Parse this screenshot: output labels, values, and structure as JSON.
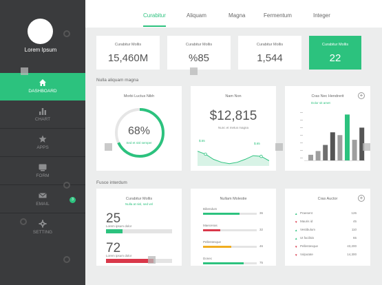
{
  "sidebar": {
    "user_name": "Lorem Ipsum",
    "items": [
      {
        "label": "DASHBOARD",
        "icon": "home-icon",
        "active": true
      },
      {
        "label": "CHART",
        "icon": "bar-chart-icon"
      },
      {
        "label": "APPS",
        "icon": "star-icon"
      },
      {
        "label": "FORM",
        "icon": "form-icon"
      },
      {
        "label": "EMAIL",
        "icon": "envelope-icon",
        "badge": "3"
      },
      {
        "label": "SETTING",
        "icon": "gear-icon"
      }
    ]
  },
  "tabs": [
    {
      "label": "Curabitur",
      "active": true
    },
    {
      "label": "Aliquam"
    },
    {
      "label": "Magna"
    },
    {
      "label": "Fermentum"
    },
    {
      "label": "Integer"
    }
  ],
  "stats": [
    {
      "label": "Curabitur Mollis",
      "value": "15,460M"
    },
    {
      "label": "Curabitur Mollis",
      "value": "%85"
    },
    {
      "label": "Curabitur Mollis",
      "value": "1,544"
    },
    {
      "label": "Curabitur Mollis",
      "value": "22",
      "highlight": true
    }
  ],
  "section1": {
    "title": "Nulla aliquam magna"
  },
  "donut_card": {
    "title": "Morbi Luctus Nibh",
    "percent": 68,
    "percent_label": "68%",
    "caption": "Sed et nisl semper"
  },
  "line_card": {
    "title": "Nam Non",
    "value": "$12,815",
    "caption": "Nunc et metus magna",
    "markers": [
      "$.55",
      "$.65"
    ],
    "chart_data": {
      "type": "area",
      "values": [
        20,
        16,
        9,
        5,
        3,
        5,
        9,
        14,
        13,
        7
      ],
      "ylim": [
        0,
        30
      ]
    }
  },
  "bar_card": {
    "title": "Cras Nec Hendrerit",
    "legend": "Dolor sit amet",
    "chart_data": {
      "type": "bar",
      "values": [
        12,
        20,
        33,
        60,
        54,
        98,
        44,
        70
      ],
      "colors": [
        "#9e9e9e",
        "#9e9e9e",
        "#6e6e6e",
        "#555555",
        "#9e9e9e",
        "#2cc27e",
        "#9e9e9e",
        "#555555"
      ],
      "ylim": [
        0,
        100
      ]
    }
  },
  "section2": {
    "title": "Fusce interdum"
  },
  "progress_card": {
    "title": "Curabitur Mollis",
    "subtitle": "Nulla at nisl, sed vel",
    "items": [
      {
        "value": "25",
        "label": "Lorem ipsum dolor",
        "progress": 0.25,
        "color": "#2cc27e"
      },
      {
        "value": "72",
        "label": "Lorem ipsum dolor",
        "progress": 0.72,
        "color": "#d9384a"
      }
    ]
  },
  "bars_card": {
    "title": "Nullam Molestie",
    "items": [
      {
        "label": "Bibendum",
        "value": "36",
        "progress": 0.68,
        "color": "#2cc27e"
      },
      {
        "label": "Maecenas",
        "value": "32",
        "progress": 0.32,
        "color": "#d9384a"
      },
      {
        "label": "Pellentesque",
        "value": "46",
        "progress": 0.52,
        "color": "#f0ad1f"
      },
      {
        "label": "Donec",
        "value": "75",
        "progress": 0.75,
        "color": "#2cc27e"
      }
    ]
  },
  "list_card": {
    "title": "Cras Auctor",
    "rows": [
      {
        "label": "Praesent",
        "value": "126",
        "trend": "up"
      },
      {
        "label": "Mauris id",
        "value": "45",
        "trend": "down"
      },
      {
        "label": "Vestibulum",
        "value": "110",
        "trend": "up"
      },
      {
        "label": "Ut facilisis",
        "value": "65",
        "trend": "up"
      },
      {
        "label": "Pellentesque",
        "value": "43,200",
        "trend": "down"
      },
      {
        "label": "Vulputate",
        "value": "14,300",
        "trend": "down"
      }
    ]
  },
  "colors": {
    "accent": "#2cc27e",
    "sidebar": "#3a3b3d",
    "background": "#eceded",
    "danger": "#d9384a",
    "warning": "#f0ad1f"
  }
}
